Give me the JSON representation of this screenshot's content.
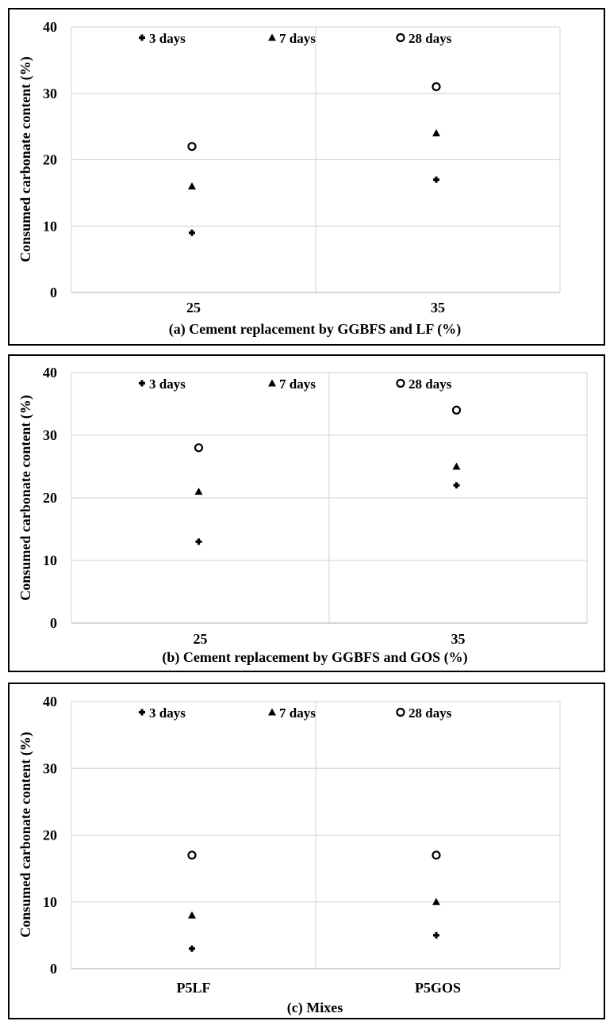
{
  "legend_labels": [
    "3 days",
    "7 days",
    "28 days"
  ],
  "chart_data": [
    {
      "type": "scatter",
      "title": "",
      "xlabel": "(a) Cement replacement by GGBFS and LF (%)",
      "ylabel": "Consumed carbonate content (%)",
      "categories": [
        "25",
        "35"
      ],
      "ylim": [
        0,
        40
      ],
      "yticks": [
        "0",
        "10",
        "20",
        "30",
        "40"
      ],
      "grid": true,
      "legend_position": "top",
      "series": [
        {
          "name": "3 days",
          "marker": "plus",
          "values": [
            9,
            17
          ]
        },
        {
          "name": "7 days",
          "marker": "triangle",
          "values": [
            16,
            24
          ]
        },
        {
          "name": "28 days",
          "marker": "circle-open",
          "values": [
            22,
            31
          ]
        }
      ]
    },
    {
      "type": "scatter",
      "title": "",
      "xlabel": "(b) Cement replacement by GGBFS and GOS (%)",
      "ylabel": "Consumed carbonate content (%)",
      "categories": [
        "25",
        "35"
      ],
      "ylim": [
        0,
        40
      ],
      "yticks": [
        "0",
        "10",
        "20",
        "30",
        "40"
      ],
      "grid": true,
      "legend_position": "top",
      "series": [
        {
          "name": "3 days",
          "marker": "plus",
          "values": [
            13,
            22
          ]
        },
        {
          "name": "7 days",
          "marker": "triangle",
          "values": [
            21,
            25
          ]
        },
        {
          "name": "28 days",
          "marker": "circle-open",
          "values": [
            28,
            34
          ]
        }
      ]
    },
    {
      "type": "scatter",
      "title": "",
      "xlabel": "(c) Mixes",
      "ylabel": "Consumed carbonate content (%)",
      "categories": [
        "P5LF",
        "P5GOS"
      ],
      "ylim": [
        0,
        40
      ],
      "yticks": [
        "0",
        "10",
        "20",
        "30",
        "40"
      ],
      "grid": true,
      "legend_position": "top",
      "series": [
        {
          "name": "3 days",
          "marker": "plus",
          "values": [
            3,
            5
          ]
        },
        {
          "name": "7 days",
          "marker": "triangle",
          "values": [
            8,
            10
          ]
        },
        {
          "name": "28 days",
          "marker": "circle-open",
          "values": [
            17,
            17
          ]
        }
      ]
    }
  ]
}
